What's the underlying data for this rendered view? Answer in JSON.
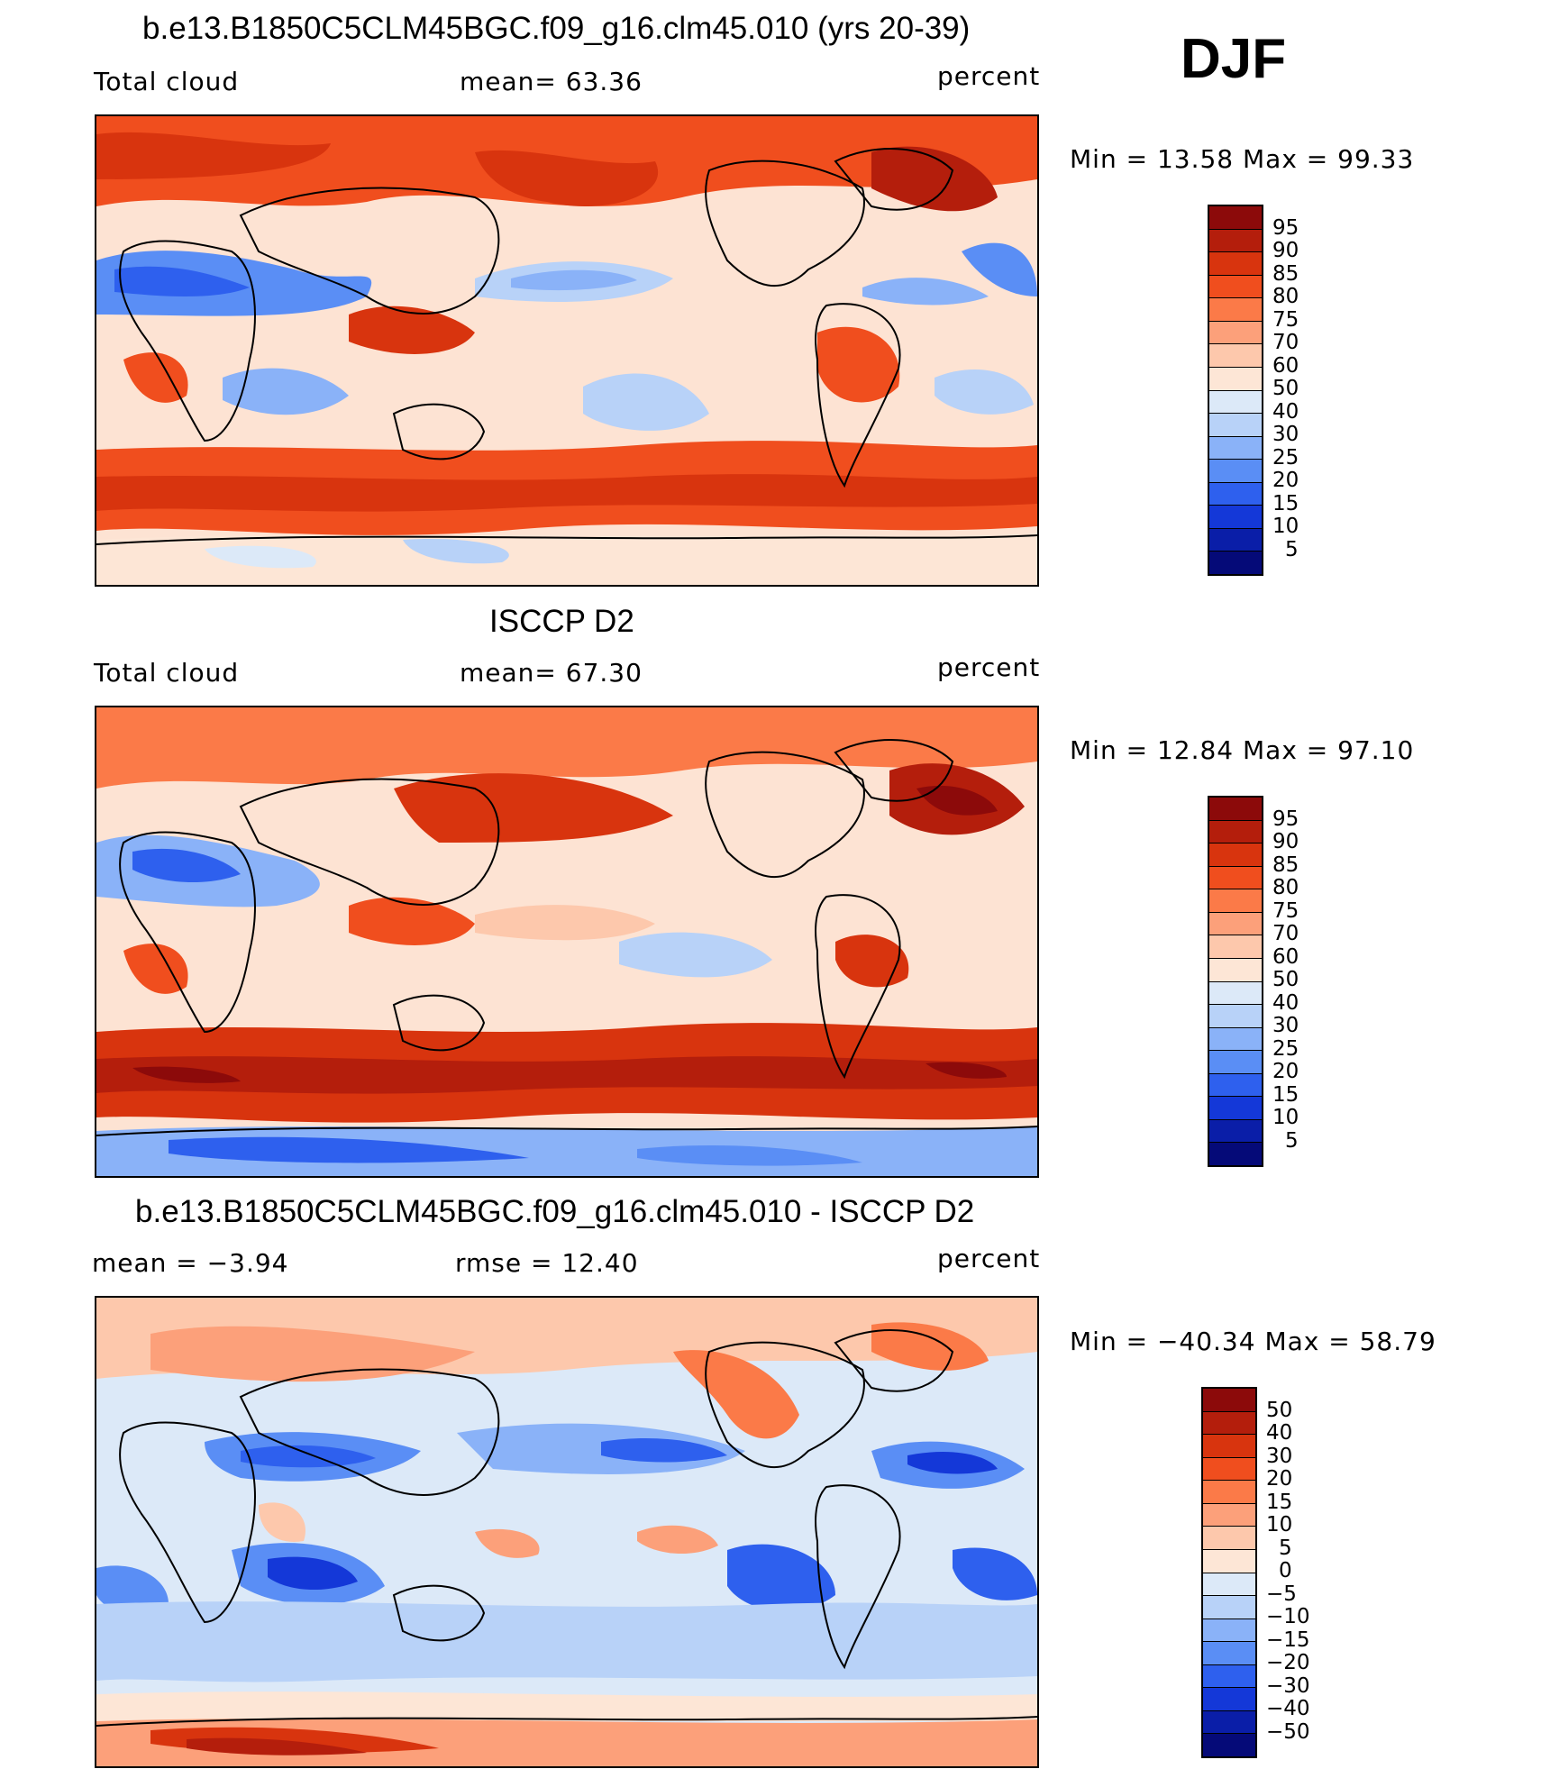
{
  "season": "DJF",
  "panels": [
    {
      "title": "b.e13.B1850C5CLM45BGC.f09_g16.clm45.010 (yrs 20-39)",
      "left_label": "Total cloud",
      "mid_label": "mean=   63.36",
      "units": "percent",
      "minmax": "Min =   13.58  Max =   99.33",
      "colorbar": [
        "95",
        "90",
        "85",
        "80",
        "75",
        "70",
        "60",
        "50",
        "40",
        "30",
        "25",
        "20",
        "15",
        "10",
        "5"
      ]
    },
    {
      "title": "ISCCP D2",
      "left_label": "Total cloud",
      "mid_label": "mean=   67.30",
      "units": "percent",
      "minmax": "Min =   12.84  Max =   97.10",
      "colorbar": [
        "95",
        "90",
        "85",
        "80",
        "75",
        "70",
        "60",
        "50",
        "40",
        "30",
        "25",
        "20",
        "15",
        "10",
        "5"
      ]
    },
    {
      "title": "b.e13.B1850C5CLM45BGC.f09_g16.clm45.010 - ISCCP D2",
      "left_label": "mean =   −3.94",
      "mid_label": "rmse =   12.40",
      "units": "percent",
      "minmax": "Min = −40.34  Max =   58.79",
      "colorbar": [
        "50",
        "40",
        "30",
        "20",
        "15",
        "10",
        "5",
        "0",
        "−5",
        "−10",
        "−15",
        "−20",
        "−30",
        "−40",
        "−50"
      ]
    }
  ],
  "colors": {
    "colorbar_16": [
      "#8c0a0a",
      "#b41e0c",
      "#d8340e",
      "#f04e1e",
      "#fb7a48",
      "#fca07a",
      "#fdc8ac",
      "#fde6d6",
      "#dce9f8",
      "#b8d2f8",
      "#8ab2f8",
      "#5a8ef5",
      "#2e60ee",
      "#1438d8",
      "#0a1ea8",
      "#050a78"
    ],
    "diff_colorbar_16": [
      "#8c0a0a",
      "#b41e0c",
      "#d8340e",
      "#f04e1e",
      "#fb7a48",
      "#fca07a",
      "#fdc8ac",
      "#fde6d6",
      "#dce9f8",
      "#b8d2f8",
      "#8ab2f8",
      "#5a8ef5",
      "#2e60ee",
      "#1438d8",
      "#0a1ea8",
      "#050a78"
    ]
  },
  "map_data": [
    {
      "domain": "global lat/lon",
      "field": "total cloud fraction (model)",
      "dominant_regions": [
        "high cloud over Southern Ocean storm track",
        "high cloud over North Pacific and North Atlantic",
        "low cloud over Sahara/Arabia",
        "low cloud over subtropical oceans"
      ]
    },
    {
      "domain": "global lat/lon",
      "field": "total cloud fraction (ISCCP D2 observations)",
      "dominant_regions": [
        "high cloud over Southern Ocean storm track",
        "high cloud over North Pacific and North Atlantic",
        "low cloud over Antarctica margin and Sahara"
      ]
    },
    {
      "domain": "global lat/lon",
      "field": "total cloud difference (model - obs)",
      "dominant_regions": [
        "negative bias over subtropical oceans",
        "positive bias over high latitudes and Antarctica"
      ]
    }
  ]
}
